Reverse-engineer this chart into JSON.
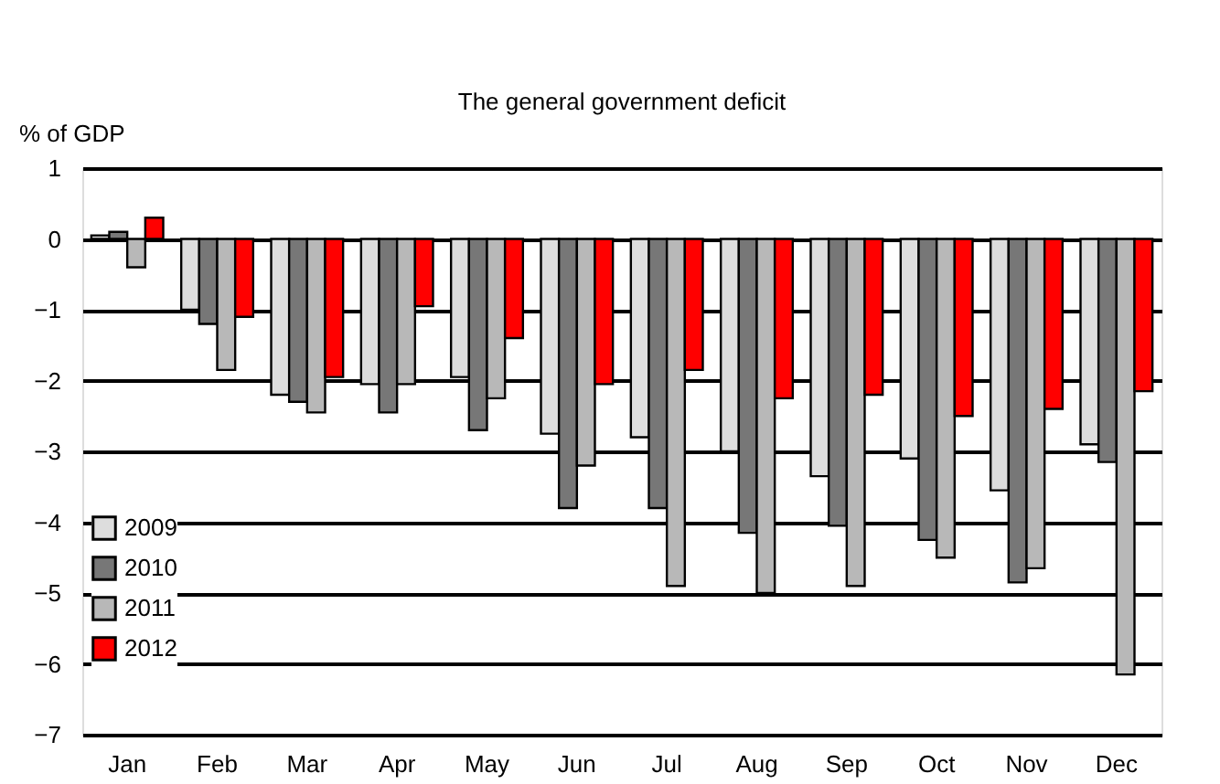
{
  "chart_data": {
    "type": "bar",
    "title": "The general government deficit",
    "ylabel": "% of GDP",
    "categories": [
      "Jan",
      "Feb",
      "Mar",
      "Apr",
      "May",
      "Jun",
      "Jul",
      "Aug",
      "Sep",
      "Oct",
      "Nov",
      "Dec"
    ],
    "series": [
      {
        "name": "2009",
        "color": "#dddddd",
        "values": [
          0.05,
          -1.0,
          -2.2,
          -2.05,
          -1.95,
          -2.75,
          -2.8,
          -3.0,
          -3.35,
          -3.1,
          -3.55,
          -2.9
        ]
      },
      {
        "name": "2010",
        "color": "#777777",
        "values": [
          0.1,
          -1.2,
          -2.3,
          -2.45,
          -2.7,
          -3.8,
          -3.8,
          -4.15,
          -4.05,
          -4.25,
          -4.85,
          -3.15
        ]
      },
      {
        "name": "2011",
        "color": "#b8b8b8",
        "values": [
          -0.4,
          -1.85,
          -2.45,
          -2.05,
          -2.25,
          -3.2,
          -4.9,
          -5.0,
          -4.9,
          -4.5,
          -4.65,
          -6.15
        ]
      },
      {
        "name": "2012",
        "color": "#ff0000",
        "values": [
          0.3,
          -1.1,
          -1.95,
          -0.95,
          -1.4,
          -2.05,
          -1.85,
          -2.25,
          -2.2,
          -2.5,
          -2.4,
          -2.15
        ]
      }
    ],
    "ylim": [
      -7,
      1
    ],
    "yticks": [
      1,
      0,
      -1,
      -2,
      -3,
      -4,
      -5,
      -6,
      -7
    ],
    "grid": "y",
    "legend": "left"
  }
}
